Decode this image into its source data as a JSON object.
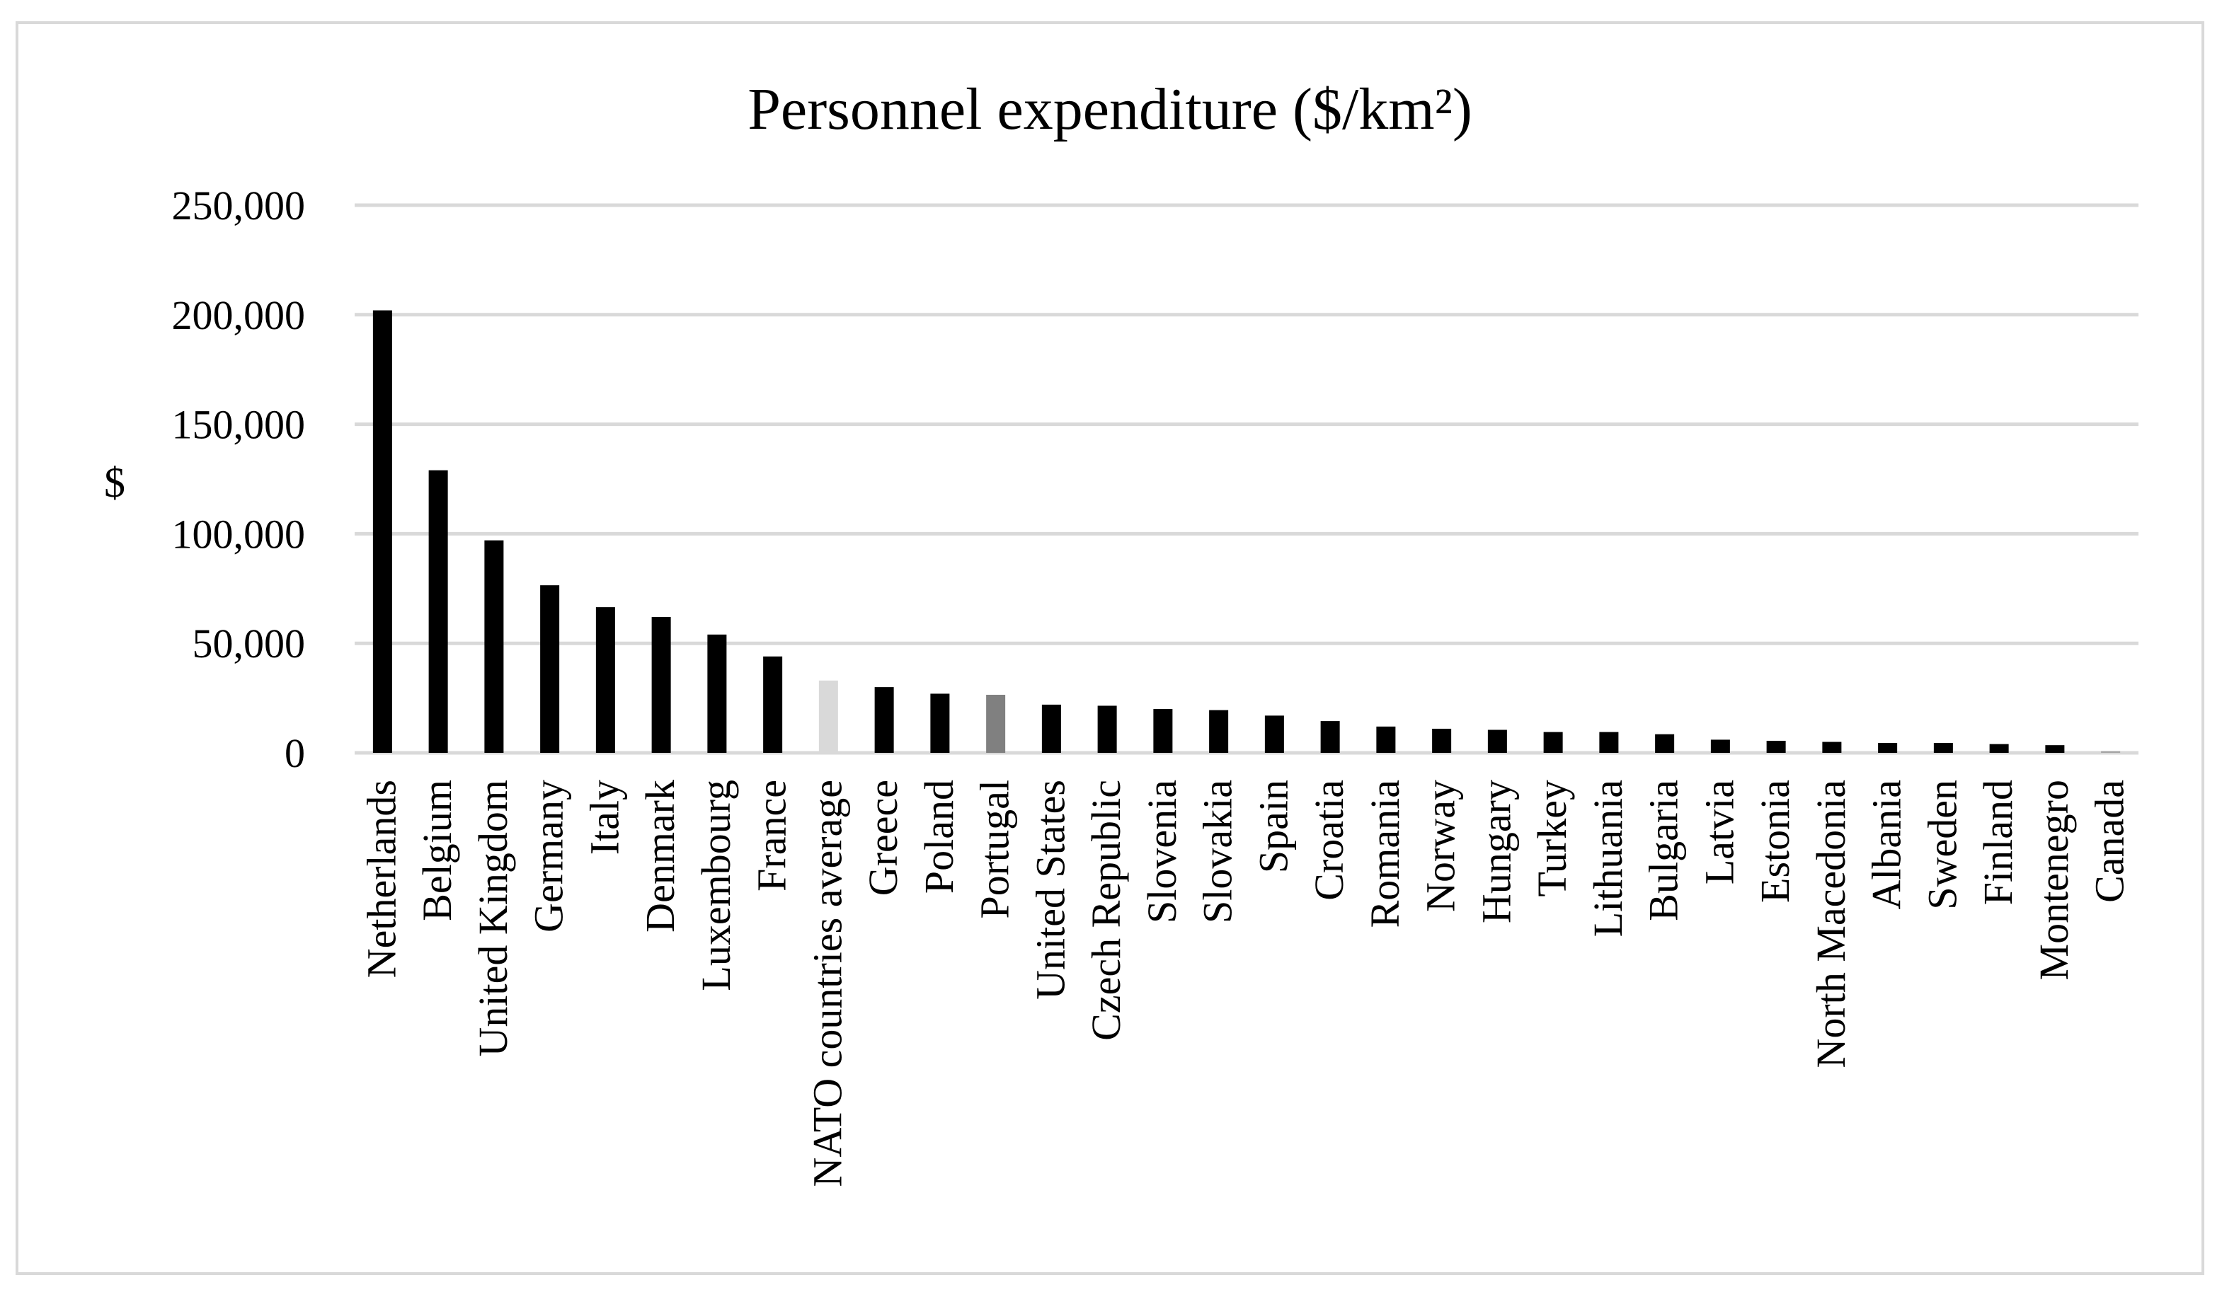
{
  "chart_data": {
    "type": "bar",
    "title": "Personnel expenditure ($/km²)",
    "xlabel": "",
    "ylabel": "$",
    "ylim": [
      0,
      250000
    ],
    "yticks": [
      0,
      50000,
      100000,
      150000,
      200000,
      250000
    ],
    "ytick_labels": [
      "0",
      "50,000",
      "100,000",
      "150,000",
      "200,000",
      "250,000"
    ],
    "grid": true,
    "legend": "none",
    "categories": [
      "Netherlands",
      "Belgium",
      "United Kingdom",
      "Germany",
      "Italy",
      "Denmark",
      "Luxembourg",
      "France",
      "NATO countries average",
      "Greece",
      "Poland",
      "Portugal",
      "United States",
      "Czech Republic",
      "Slovenia",
      "Slovakia",
      "Spain",
      "Croatia",
      "Romania",
      "Norway",
      "Hungary",
      "Turkey",
      "Lithuania",
      "Bulgaria",
      "Latvia",
      "Estonia",
      "North Macedonia",
      "Albania",
      "Sweden",
      "Finland",
      "Montenegro",
      "Canada"
    ],
    "values": [
      202000,
      129000,
      97000,
      76500,
      66500,
      62000,
      54000,
      44000,
      33000,
      30000,
      27000,
      26500,
      22000,
      21500,
      20000,
      19500,
      17000,
      14500,
      12000,
      11000,
      10500,
      9500,
      9500,
      8500,
      6000,
      5500,
      5000,
      4500,
      4500,
      4000,
      3500,
      800
    ],
    "colors": {
      "default": "#000000",
      "NATO countries average": "#d9d9d9",
      "Portugal": "#808080",
      "Canada": "#a6a6a6",
      "grid": "#d9d9d9"
    }
  }
}
